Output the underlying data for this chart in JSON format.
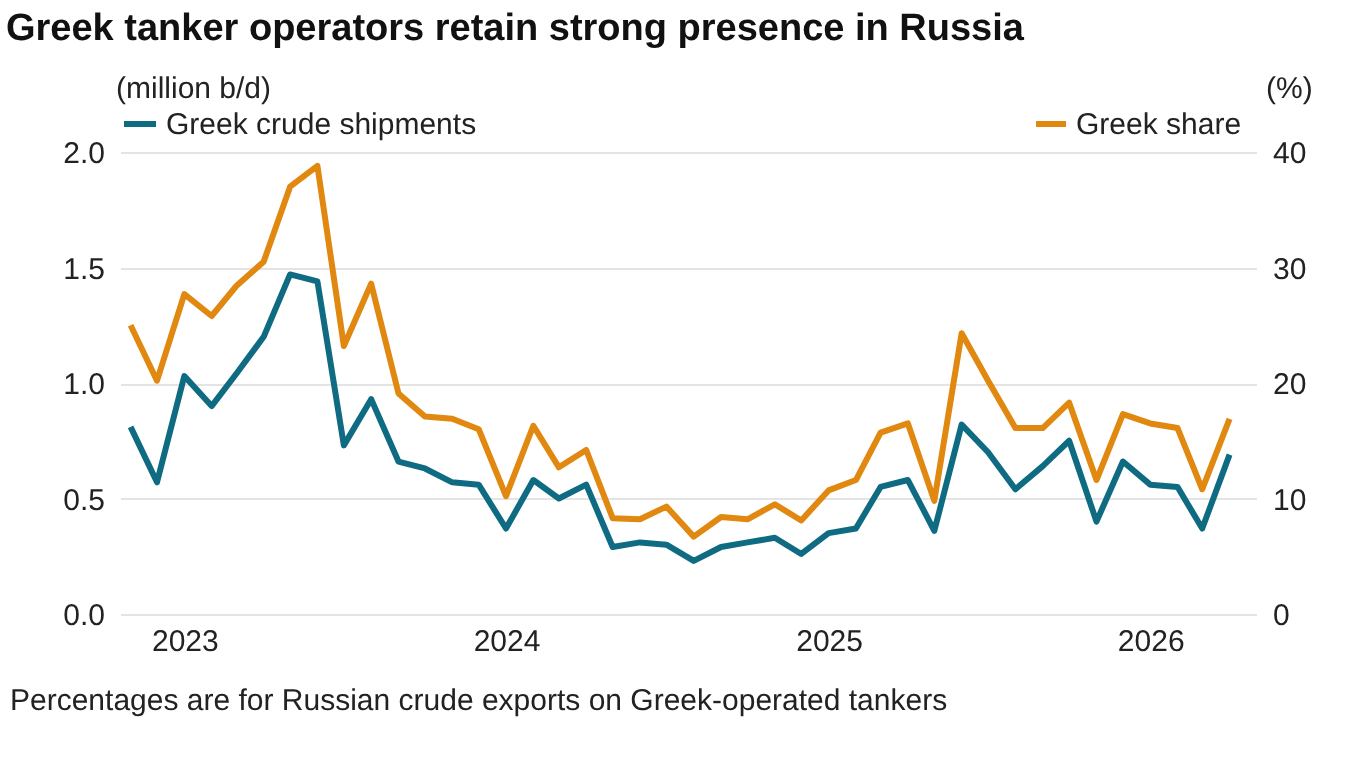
{
  "chart_data": {
    "type": "line",
    "title": "Greek tanker operators retain strong presence in Russia",
    "ylabel": "(million b/d)",
    "y2label": "(%)",
    "x": [
      "2022-11",
      "2022-12",
      "2023-01",
      "2023-02",
      "2023-03",
      "2023-04",
      "2023-05",
      "2023-06",
      "2023-07",
      "2023-08",
      "2023-09",
      "2023-10",
      "2023-11",
      "2023-12",
      "2024-01",
      "2024-02",
      "2024-03",
      "2024-04",
      "2024-05",
      "2024-06",
      "2024-07",
      "2024-08",
      "2024-09",
      "2024-10",
      "2024-11",
      "2024-12",
      "2025-01",
      "2025-02",
      "2025-03",
      "2025-04",
      "2025-05",
      "2025-06",
      "2025-07",
      "2025-08",
      "2025-09",
      "2025-10",
      "2025-11",
      "2025-12",
      "2026-01",
      "2026-02",
      "2026-03",
      "2026-04"
    ],
    "series": [
      {
        "name": "Greek crude shipments",
        "color": "#0f6b82",
        "values": [
          0.81,
          0.57,
          1.03,
          0.9,
          1.04,
          1.2,
          1.47,
          1.44,
          0.73,
          0.93,
          0.66,
          0.63,
          0.57,
          0.56,
          0.37,
          0.58,
          0.5,
          0.56,
          0.29,
          0.31,
          0.3,
          0.23,
          0.29,
          0.31,
          0.33,
          0.26,
          0.35,
          0.37,
          0.55,
          0.58,
          0.36,
          0.82,
          0.7,
          0.54,
          0.64,
          0.75,
          0.4,
          0.66,
          0.56,
          0.55,
          0.37,
          0.69
        ]
      },
      {
        "name": "Greek share",
        "color": "#e0880f",
        "axis": "y2",
        "values": [
          25.0,
          20.2,
          27.7,
          25.8,
          28.4,
          30.5,
          37.0,
          38.8,
          23.2,
          28.6,
          19.1,
          17.1,
          16.9,
          16.0,
          10.2,
          16.3,
          12.7,
          14.2,
          8.3,
          8.2,
          9.3,
          6.7,
          8.4,
          8.2,
          9.5,
          8.1,
          10.7,
          11.6,
          15.7,
          16.5,
          9.8,
          24.3,
          20.2,
          16.1,
          16.1,
          18.3,
          11.6,
          17.3,
          16.5,
          16.1,
          10.8,
          16.9
        ]
      }
    ],
    "xlim": [
      "2022-10-20",
      "2026-05-01"
    ],
    "xticks": [
      "2023",
      "2024",
      "2025",
      "2026"
    ],
    "ylim": [
      0,
      2
    ],
    "yticks": [
      {
        "value": 0,
        "label": "0.0"
      },
      {
        "value": 0.5,
        "label": "0.5"
      },
      {
        "value": 1,
        "label": "1.0"
      },
      {
        "value": 1.5,
        "label": "1.5"
      },
      {
        "value": 2,
        "label": "2.0"
      }
    ],
    "y2lim": [
      0,
      40
    ],
    "y2ticks": [
      0,
      10,
      20,
      30,
      40
    ],
    "grid": "y",
    "legend": "top",
    "line_style": "solid",
    "marker": "none",
    "annotations": [
      "Percentages are for Russian crude exports on Greek-operated tankers"
    ]
  }
}
